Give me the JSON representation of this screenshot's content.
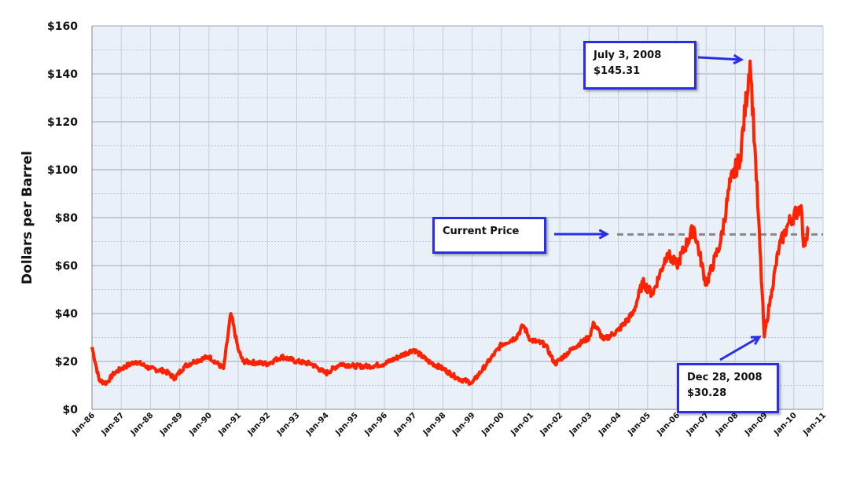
{
  "chart_data": {
    "type": "line",
    "title": "",
    "xlabel": "",
    "ylabel": "Dollars per Barrel",
    "ylim": [
      0,
      160
    ],
    "yticks": [
      0,
      20,
      40,
      60,
      80,
      100,
      120,
      140,
      160
    ],
    "ytick_labels": [
      "$0",
      "$20",
      "$40",
      "$60",
      "$80",
      "$100",
      "$120",
      "$140",
      "$160"
    ],
    "xlim": [
      "Jan-86",
      "Jan-11"
    ],
    "xtick_labels": [
      "Jan-86",
      "Jan-87",
      "Jan-88",
      "Jan-89",
      "Jan-90",
      "Jan-91",
      "Jan-92",
      "Jan-93",
      "Jan-94",
      "Jan-95",
      "Jan-96",
      "Jan-97",
      "Jan-98",
      "Jan-99",
      "Jan-00",
      "Jan-01",
      "Jan-02",
      "Jan-03",
      "Jan-04",
      "Jan-05",
      "Jan-06",
      "Jan-07",
      "Jan-08",
      "Jan-09",
      "Jan-10",
      "Jan-11"
    ],
    "grid": true,
    "series": [
      {
        "color": "#ff2200",
        "x": [
          "1986-01",
          "1986-04",
          "1986-07",
          "1986-10",
          "1987-01",
          "1987-07",
          "1988-01",
          "1988-07",
          "1988-11",
          "1989-03",
          "1989-07",
          "1990-01",
          "1990-07",
          "1990-10",
          "1991-01",
          "1991-03",
          "1992-01",
          "1992-07",
          "1993-01",
          "1993-07",
          "1994-01",
          "1994-07",
          "1995-01",
          "1995-07",
          "1996-01",
          "1996-07",
          "1997-01",
          "1997-07",
          "1998-01",
          "1998-07",
          "1999-01",
          "1999-07",
          "2000-01",
          "2000-07",
          "2000-10",
          "2001-01",
          "2001-07",
          "2001-11",
          "2002-07",
          "2003-01",
          "2003-03",
          "2003-07",
          "2004-01",
          "2004-07",
          "2004-11",
          "2005-03",
          "2005-09",
          "2006-01",
          "2006-08",
          "2007-01",
          "2007-07",
          "2007-11",
          "2008-03",
          "2008-07-03",
          "2008-09",
          "2008-12-28",
          "2009-04",
          "2009-07",
          "2009-11",
          "2010-04",
          "2010-05",
          "2010-07"
        ],
        "y": [
          26,
          12,
          11,
          15,
          17,
          20,
          17,
          16,
          13,
          18,
          20,
          22,
          17,
          40,
          25,
          20,
          19,
          22,
          20,
          19,
          15,
          19,
          18,
          18,
          19,
          22,
          25,
          20,
          17,
          13,
          11,
          19,
          27,
          30,
          35,
          29,
          27,
          19,
          26,
          30,
          36,
          29,
          33,
          40,
          53,
          48,
          65,
          60,
          76,
          52,
          70,
          95,
          105,
          145.31,
          110,
          30.28,
          50,
          68,
          78,
          85,
          68,
          76
        ]
      }
    ],
    "reference_line": {
      "label": "Current Price",
      "value": 73,
      "color": "#888888",
      "style": "dashed"
    },
    "annotations": [
      {
        "line1": "July 3, 2008",
        "line2": "$145.31"
      },
      {
        "line1": "Current Price",
        "line2": ""
      },
      {
        "line1": "Dec 28, 2008",
        "line2": "$30.28"
      }
    ],
    "annotation_color": "#2b2ee8",
    "plot_background": "#e9f0f8"
  }
}
